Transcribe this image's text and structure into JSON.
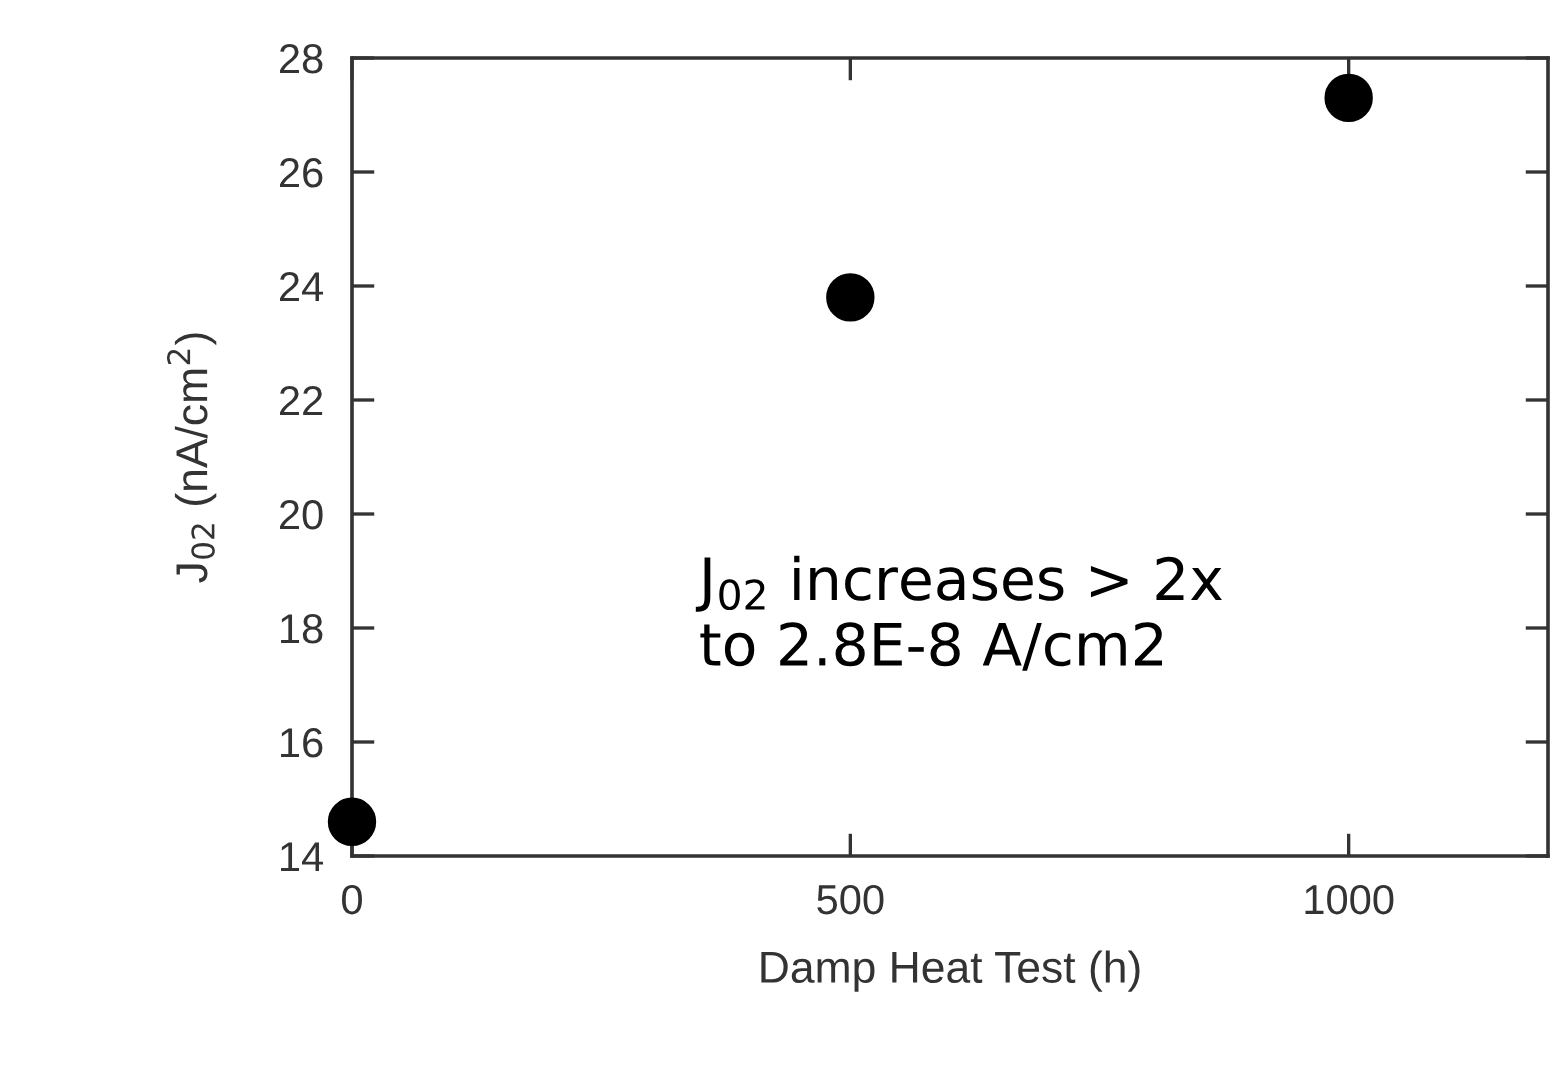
{
  "chart_data": {
    "type": "scatter",
    "x": [
      0,
      500,
      1000
    ],
    "values": [
      14.6,
      23.8,
      27.3
    ],
    "color": "#000000",
    "marker": "circle",
    "xlim": [
      0,
      1200
    ],
    "xticks": [
      0,
      500,
      1000
    ],
    "ylim": [
      14,
      28
    ],
    "yticks": [
      14,
      16,
      18,
      20,
      22,
      24,
      26,
      28
    ],
    "xlabel": "Damp Heat Test (h)",
    "ylabel": "J$_{02}$ (nA/cm$^{2}$)",
    "annotations": [
      "J$_{02}$ increases > 2x\nto 2.8E-8 A/cm2"
    ],
    "grid": false,
    "legend": false
  }
}
